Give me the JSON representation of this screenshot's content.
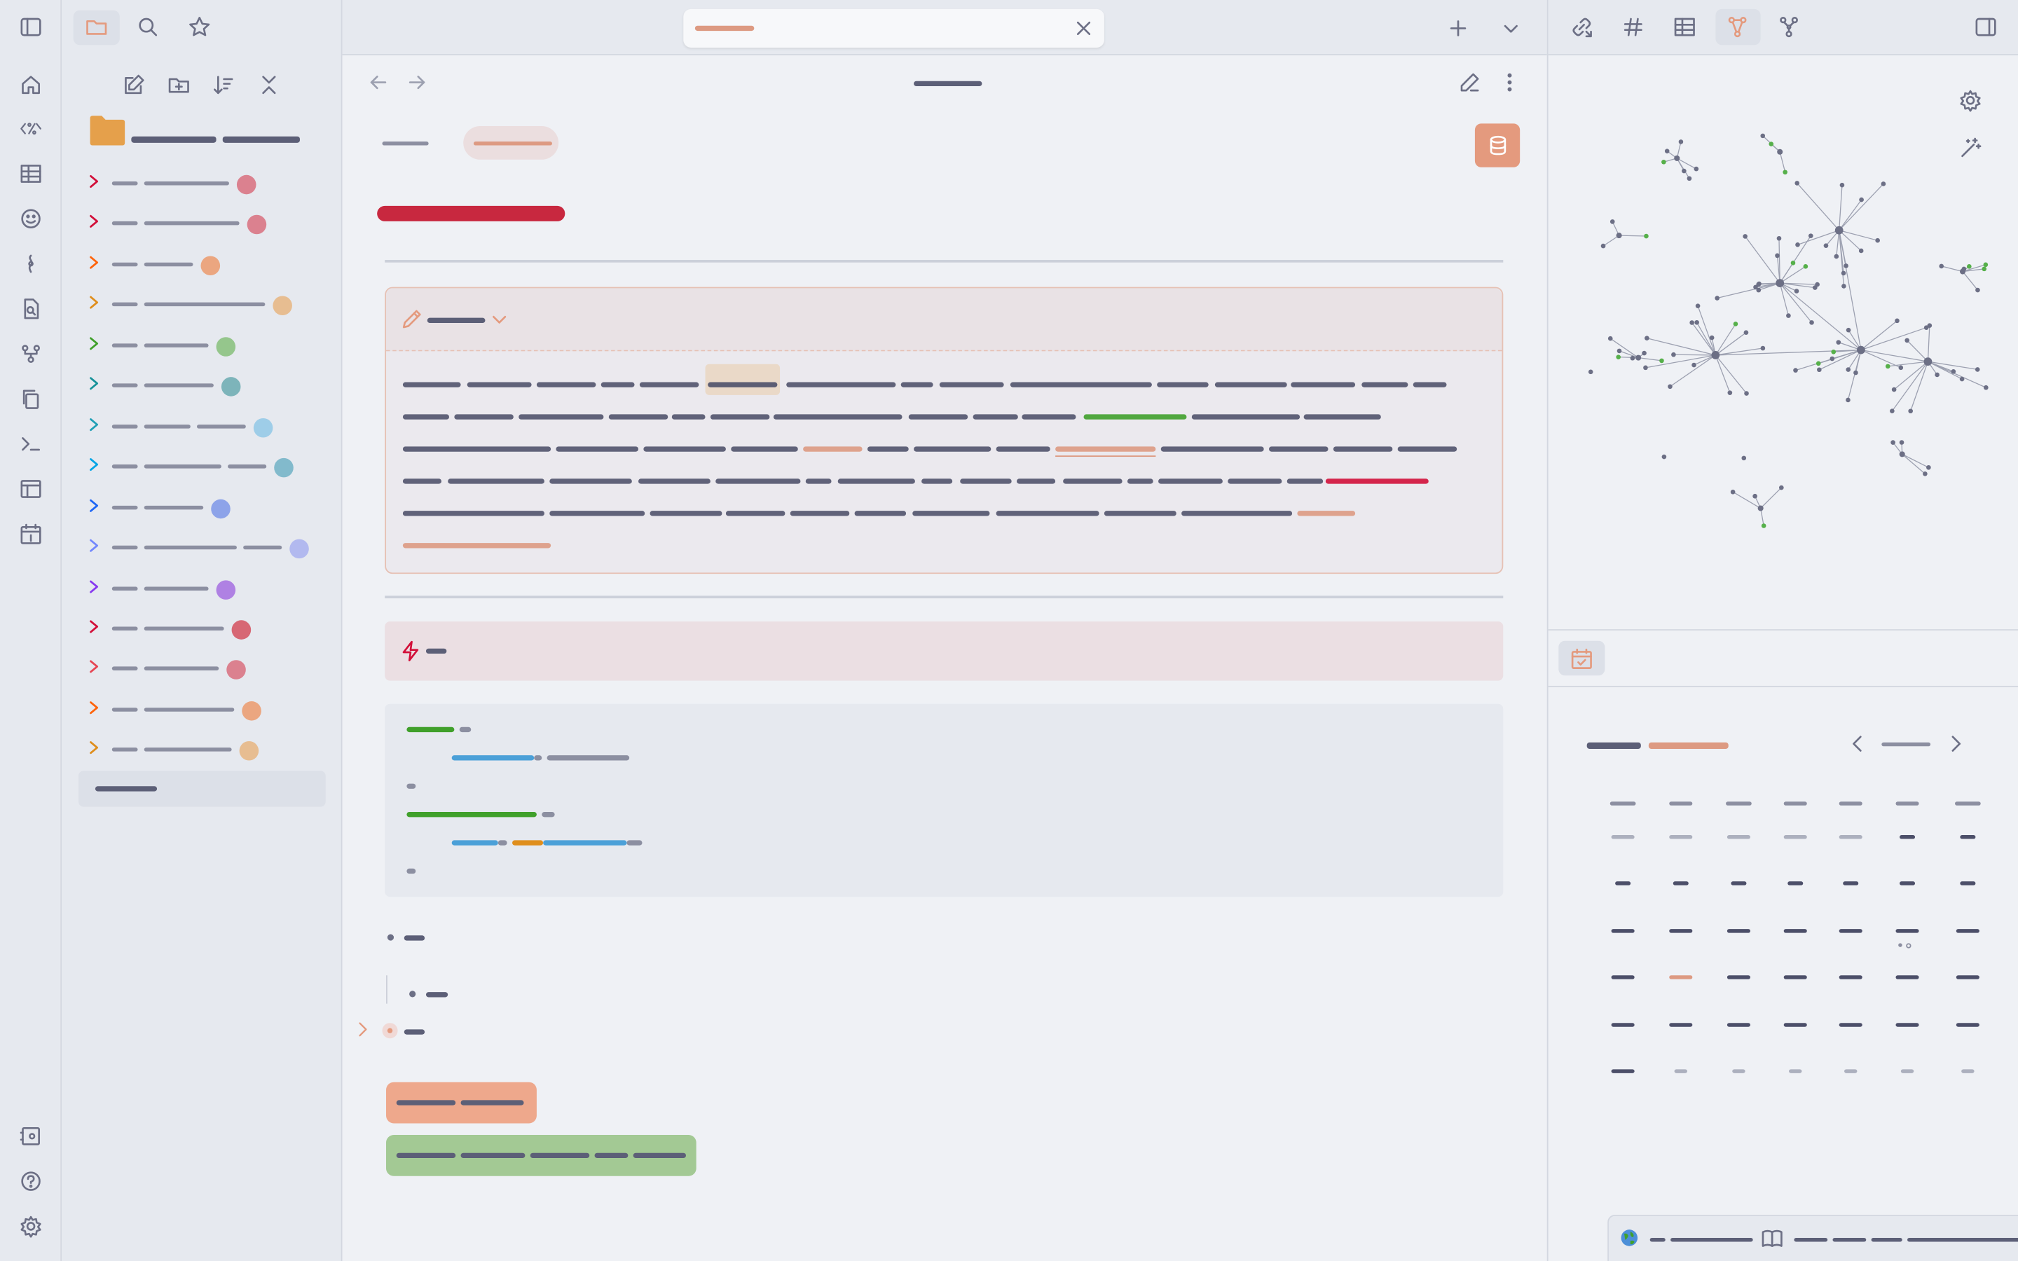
{
  "colors": {
    "accent": "#e49a7e",
    "folder": "#e5a04b",
    "danger": "#d20f39",
    "green": "#40a02b",
    "blue": "#1e90d0",
    "ink": "#4c4f69",
    "gray": "#8c8fa1",
    "highlight_green": "#a3c994",
    "highlight_peach": "#eea88c",
    "callout_red_bg": "#ebdfe3",
    "graph_green_node": "#56b04a",
    "graph_node": "#6c6f85"
  },
  "ribbon": {
    "top_icons": [
      "home-icon",
      "percent-code-icon",
      "table-icon",
      "smile-icon",
      "pin-icon",
      "file-search-icon",
      "graph-icon",
      "copy-icon",
      "terminal-icon",
      "layout-icon",
      "calendar-icon"
    ],
    "bottom_icons": [
      "vault-icon",
      "help-icon",
      "settings-icon"
    ]
  },
  "sidebar_left": {
    "toolbar_icons": [
      "new-note-icon",
      "new-folder-icon",
      "sort-icon",
      "collapse-icon"
    ],
    "tree_dot_colors": [
      "#d86e7e",
      "#d86e7e",
      "#eb9a6c",
      "#e6b580",
      "#86c07a",
      "#6aaab0",
      "#90c8e6",
      "#70b2c6",
      "#7d97e8",
      "#a8b0ee",
      "#a56ee0",
      "#d3505e",
      "#d86e7e",
      "#eb9a6c",
      "#e6b580"
    ],
    "tree_chevron_colors": [
      "#d20f39",
      "#d20f39",
      "#fe640b",
      "#df8e1d",
      "#40a02b",
      "#179299",
      "#209fb5",
      "#04a5e5",
      "#1e66f5",
      "#7287fd",
      "#8839ef",
      "#d20f39",
      "#e64553",
      "#fe640b",
      "#df8e1d"
    ]
  },
  "tabbar": {
    "icons": [
      "new-tab-icon",
      "tab-list-icon",
      "sidebar-toggle-icon",
      "folder-icon",
      "search-icon",
      "bookmark-icon",
      "close-tab-icon"
    ]
  },
  "main": {
    "toolbar_icons": [
      "back-arrow-icon",
      "forward-arrow-icon",
      "edit-icon",
      "more-options-icon"
    ],
    "database_icon": "database-icon",
    "callout_icons": [
      "pencil-icon",
      "chevron-down-icon",
      "lightning-icon"
    ]
  },
  "sidebar_right": {
    "tab_icons": [
      "backlinks-icon",
      "tags-icon",
      "table-icon",
      "graph-icon",
      "local-graph-icon",
      "right-sidebar-toggle-icon"
    ],
    "graph_icons": [
      "settings-icon",
      "magic-wand-icon"
    ],
    "calendar_tab_icon": "calendar-check-icon",
    "calendar_nav": [
      "chevron-left-icon",
      "chevron-right-icon"
    ],
    "status_icons": [
      "globe-icon",
      "book-open-icon"
    ]
  }
}
